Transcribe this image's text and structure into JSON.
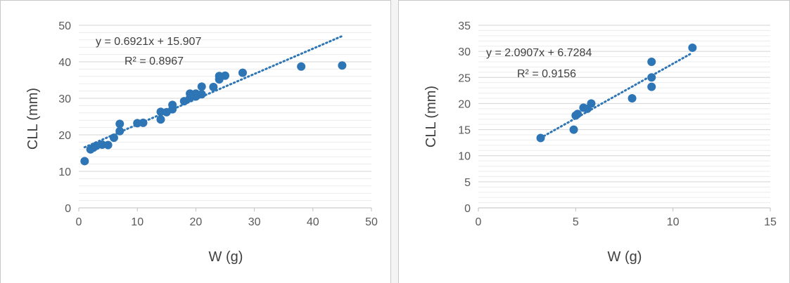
{
  "chart_data": [
    {
      "type": "scatter",
      "xlabel": "W (g)",
      "ylabel": "CLL (mm)",
      "xlim": [
        0,
        50
      ],
      "ylim": [
        0,
        50
      ],
      "x_ticks": [
        0,
        10,
        20,
        30,
        40,
        50
      ],
      "y_ticks": [
        0,
        10,
        20,
        30,
        40,
        50
      ],
      "grid": "horizontal",
      "color": "#2e75b6",
      "trendline": {
        "slope": 0.6921,
        "intercept": 15.907,
        "x_range": [
          1,
          45
        ]
      },
      "equation_text": "y = 0.6921x  + 15.907",
      "r2_text": "R² = 0.8967",
      "points": [
        {
          "x": 1,
          "y": 12.8
        },
        {
          "x": 2,
          "y": 16
        },
        {
          "x": 2.5,
          "y": 16.5
        },
        {
          "x": 3,
          "y": 17
        },
        {
          "x": 4,
          "y": 17.3
        },
        {
          "x": 5,
          "y": 17.2
        },
        {
          "x": 6,
          "y": 19.2
        },
        {
          "x": 7,
          "y": 21
        },
        {
          "x": 7,
          "y": 23
        },
        {
          "x": 10,
          "y": 23.2
        },
        {
          "x": 11,
          "y": 23.3
        },
        {
          "x": 14,
          "y": 24.2
        },
        {
          "x": 14,
          "y": 26.3
        },
        {
          "x": 15,
          "y": 26.2
        },
        {
          "x": 16,
          "y": 27
        },
        {
          "x": 16,
          "y": 28.2
        },
        {
          "x": 18,
          "y": 29.2
        },
        {
          "x": 19,
          "y": 30.1
        },
        {
          "x": 19,
          "y": 31.3
        },
        {
          "x": 20,
          "y": 30.5
        },
        {
          "x": 20,
          "y": 31.3
        },
        {
          "x": 21,
          "y": 31.1
        },
        {
          "x": 21,
          "y": 33.2
        },
        {
          "x": 23,
          "y": 33.1
        },
        {
          "x": 24,
          "y": 35.2
        },
        {
          "x": 24,
          "y": 36.1
        },
        {
          "x": 25,
          "y": 36.2
        },
        {
          "x": 28,
          "y": 37
        },
        {
          "x": 38,
          "y": 38.7
        },
        {
          "x": 45,
          "y": 39
        }
      ]
    },
    {
      "type": "scatter",
      "xlabel": "W (g)",
      "ylabel": "CLL (mm)",
      "xlim": [
        0,
        15
      ],
      "ylim": [
        0,
        35
      ],
      "x_ticks": [
        0,
        5,
        10,
        15
      ],
      "y_ticks": [
        0,
        5,
        10,
        15,
        20,
        25,
        30,
        35
      ],
      "grid": "horizontal",
      "color": "#2e75b6",
      "trendline": {
        "slope": 2.0907,
        "intercept": 6.7284,
        "x_range": [
          3.2,
          11
        ]
      },
      "equation_text": "y = 2.0907x  + 6.7284",
      "r2_text": "R² = 0.9156",
      "points": [
        {
          "x": 3.2,
          "y": 13.4
        },
        {
          "x": 4.9,
          "y": 15
        },
        {
          "x": 5,
          "y": 17.7
        },
        {
          "x": 5.1,
          "y": 18
        },
        {
          "x": 5.4,
          "y": 19.2
        },
        {
          "x": 5.6,
          "y": 19
        },
        {
          "x": 5.8,
          "y": 20
        },
        {
          "x": 7.9,
          "y": 21
        },
        {
          "x": 8.9,
          "y": 23.2
        },
        {
          "x": 8.9,
          "y": 25
        },
        {
          "x": 8.9,
          "y": 28
        },
        {
          "x": 11,
          "y": 30.7
        }
      ]
    }
  ]
}
